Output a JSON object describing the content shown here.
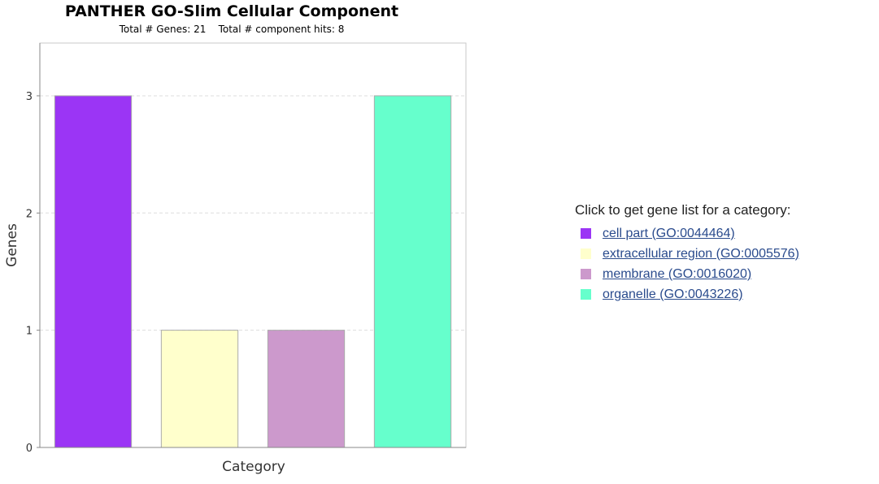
{
  "chart_data": {
    "type": "bar",
    "title": "PANTHER GO-Slim Cellular Component",
    "subtitle": "Total # Genes: 21    Total # component hits: 8",
    "xlabel": "Category",
    "ylabel": "Genes",
    "ylim": [
      0,
      3.45
    ],
    "yticks": [
      0,
      1,
      2,
      3
    ],
    "grid": true,
    "categories": [
      "cell part (GO:0044464)",
      "extracellular region (GO:0005576)",
      "membrane (GO:0016020)",
      "organelle (GO:0043226)"
    ],
    "values": [
      3,
      1,
      1,
      3
    ],
    "colors": [
      "#9b35f5",
      "#ffffcc",
      "#cc99cc",
      "#66ffcc"
    ],
    "legend_placement": "right"
  },
  "legend": {
    "heading": "Click to get gene list for a category:",
    "items": [
      {
        "label": "cell part (GO:0044464)",
        "color": "#9b35f5"
      },
      {
        "label": "extracellular region (GO:0005576)",
        "color": "#ffffcc"
      },
      {
        "label": "membrane (GO:0016020)",
        "color": "#cc99cc"
      },
      {
        "label": "organelle (GO:0043226)",
        "color": "#66ffcc"
      }
    ]
  }
}
